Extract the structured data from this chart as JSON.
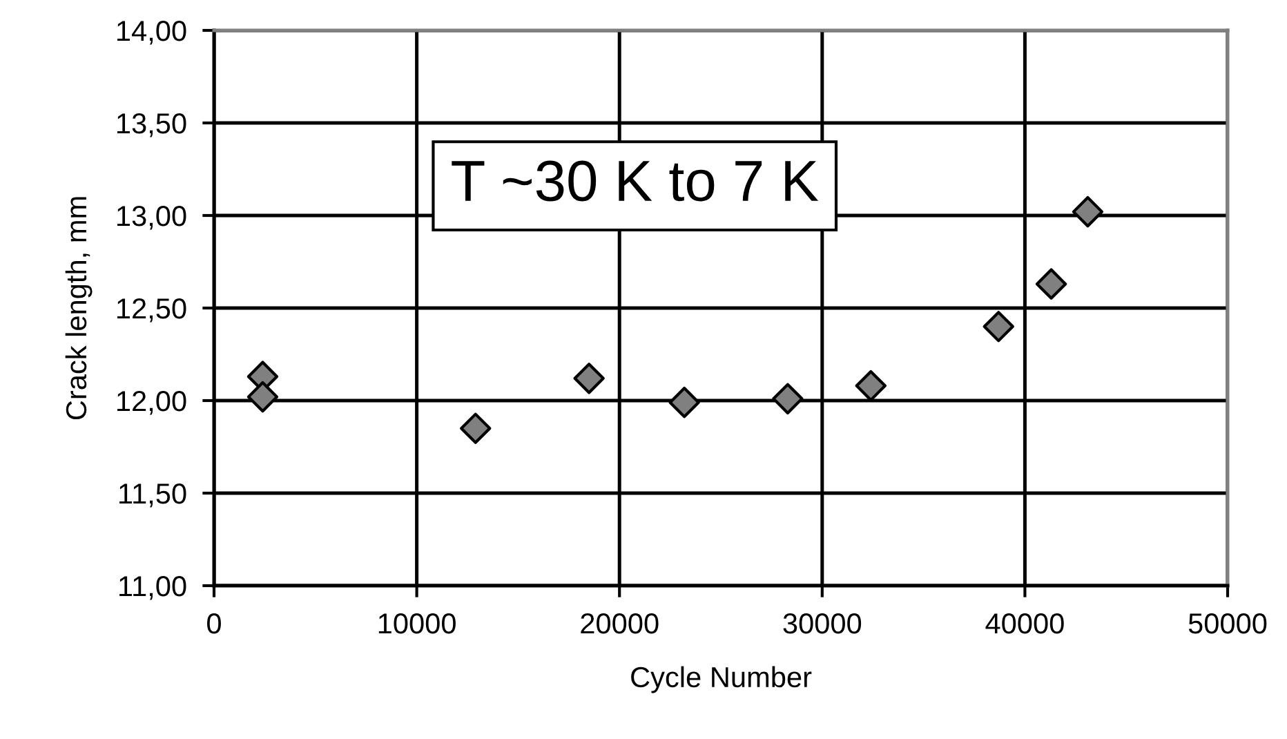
{
  "chart_data": {
    "type": "scatter",
    "xlabel": "Cycle Number",
    "ylabel": "Crack length, mm",
    "annotations": [
      "T ~30 K to 7 K"
    ],
    "x": [
      2400,
      2400,
      12900,
      18500,
      23200,
      28300,
      32400,
      38700,
      41300,
      43100
    ],
    "series": [
      {
        "color": "#808080",
        "values": [
          12.13,
          12.02,
          11.85,
          12.12,
          11.99,
          12.01,
          12.08,
          12.4,
          12.63,
          13.02
        ]
      }
    ],
    "xlim": [
      0,
      50000
    ],
    "xticks": [
      0,
      10000,
      20000,
      30000,
      40000,
      50000
    ],
    "ylim": [
      11,
      14
    ],
    "yticks": [
      {
        "value": 11,
        "label": "11,00"
      },
      {
        "value": 11.5,
        "label": "11,50"
      },
      {
        "value": 12,
        "label": "12,00"
      },
      {
        "value": 12.5,
        "label": "12,50"
      },
      {
        "value": 13,
        "label": "13,00"
      },
      {
        "value": 13.5,
        "label": "13,50"
      },
      {
        "value": 14,
        "label": "14,00"
      }
    ],
    "grid": true,
    "marker": "diamond"
  }
}
